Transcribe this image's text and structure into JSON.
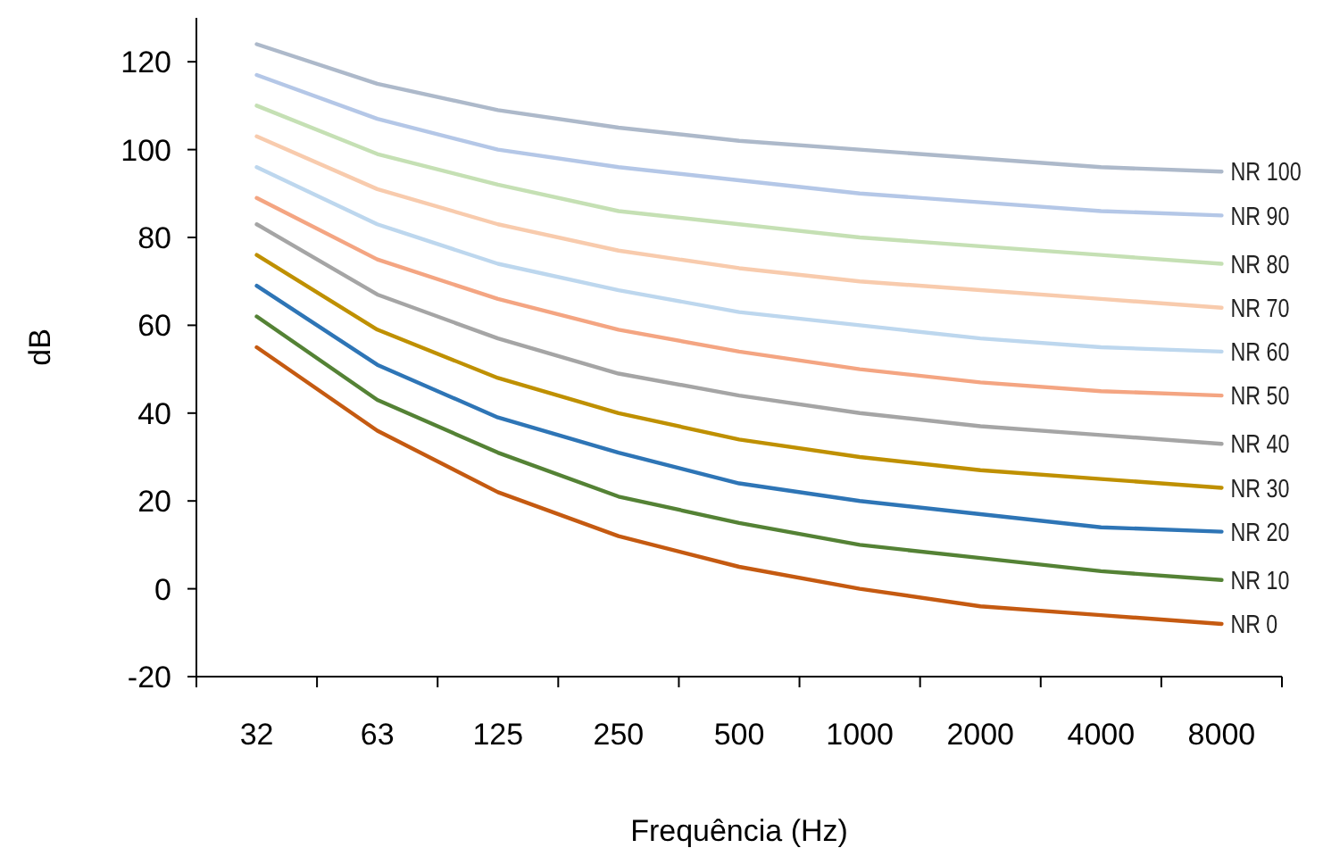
{
  "chart_data": {
    "type": "line",
    "xlabel": "Frequência (Hz)",
    "ylabel": "dB",
    "categories": [
      "32",
      "63",
      "125",
      "250",
      "500",
      "1000",
      "2000",
      "4000",
      "8000"
    ],
    "ylim": [
      -20,
      130
    ],
    "yticks": [
      -20,
      0,
      20,
      40,
      60,
      80,
      100,
      120
    ],
    "grid": false,
    "legend": false,
    "marker": "none",
    "line_style": "solid",
    "series": [
      {
        "name": "NR 0",
        "color": "#c55a11",
        "values": [
          55,
          36,
          22,
          12,
          5,
          0,
          -4,
          -6,
          -8
        ]
      },
      {
        "name": "NR 10",
        "color": "#548235",
        "values": [
          62,
          43,
          31,
          21,
          15,
          10,
          7,
          4,
          2
        ]
      },
      {
        "name": "NR 20",
        "color": "#2e75b6",
        "values": [
          69,
          51,
          39,
          31,
          24,
          20,
          17,
          14,
          13
        ]
      },
      {
        "name": "NR 30",
        "color": "#bf9000",
        "values": [
          76,
          59,
          48,
          40,
          34,
          30,
          27,
          25,
          23
        ]
      },
      {
        "name": "NR 40",
        "color": "#a5a5a5",
        "values": [
          83,
          67,
          57,
          49,
          44,
          40,
          37,
          35,
          33
        ]
      },
      {
        "name": "NR 50",
        "color": "#f4a582",
        "values": [
          89,
          75,
          66,
          59,
          54,
          50,
          47,
          45,
          44
        ]
      },
      {
        "name": "NR 60",
        "color": "#bdd7ee",
        "values": [
          96,
          83,
          74,
          68,
          63,
          60,
          57,
          55,
          54
        ]
      },
      {
        "name": "NR 70",
        "color": "#f8cbad",
        "values": [
          103,
          91,
          83,
          77,
          73,
          70,
          68,
          66,
          64
        ]
      },
      {
        "name": "NR 80",
        "color": "#c5e0b4",
        "values": [
          110,
          99,
          92,
          86,
          83,
          80,
          78,
          76,
          74
        ]
      },
      {
        "name": "NR 90",
        "color": "#b4c7e7",
        "values": [
          117,
          107,
          100,
          96,
          93,
          90,
          88,
          86,
          85
        ]
      },
      {
        "name": "NR 100",
        "color": "#adb9ca",
        "values": [
          124,
          115,
          109,
          105,
          102,
          100,
          98,
          96,
          95
        ]
      }
    ]
  }
}
